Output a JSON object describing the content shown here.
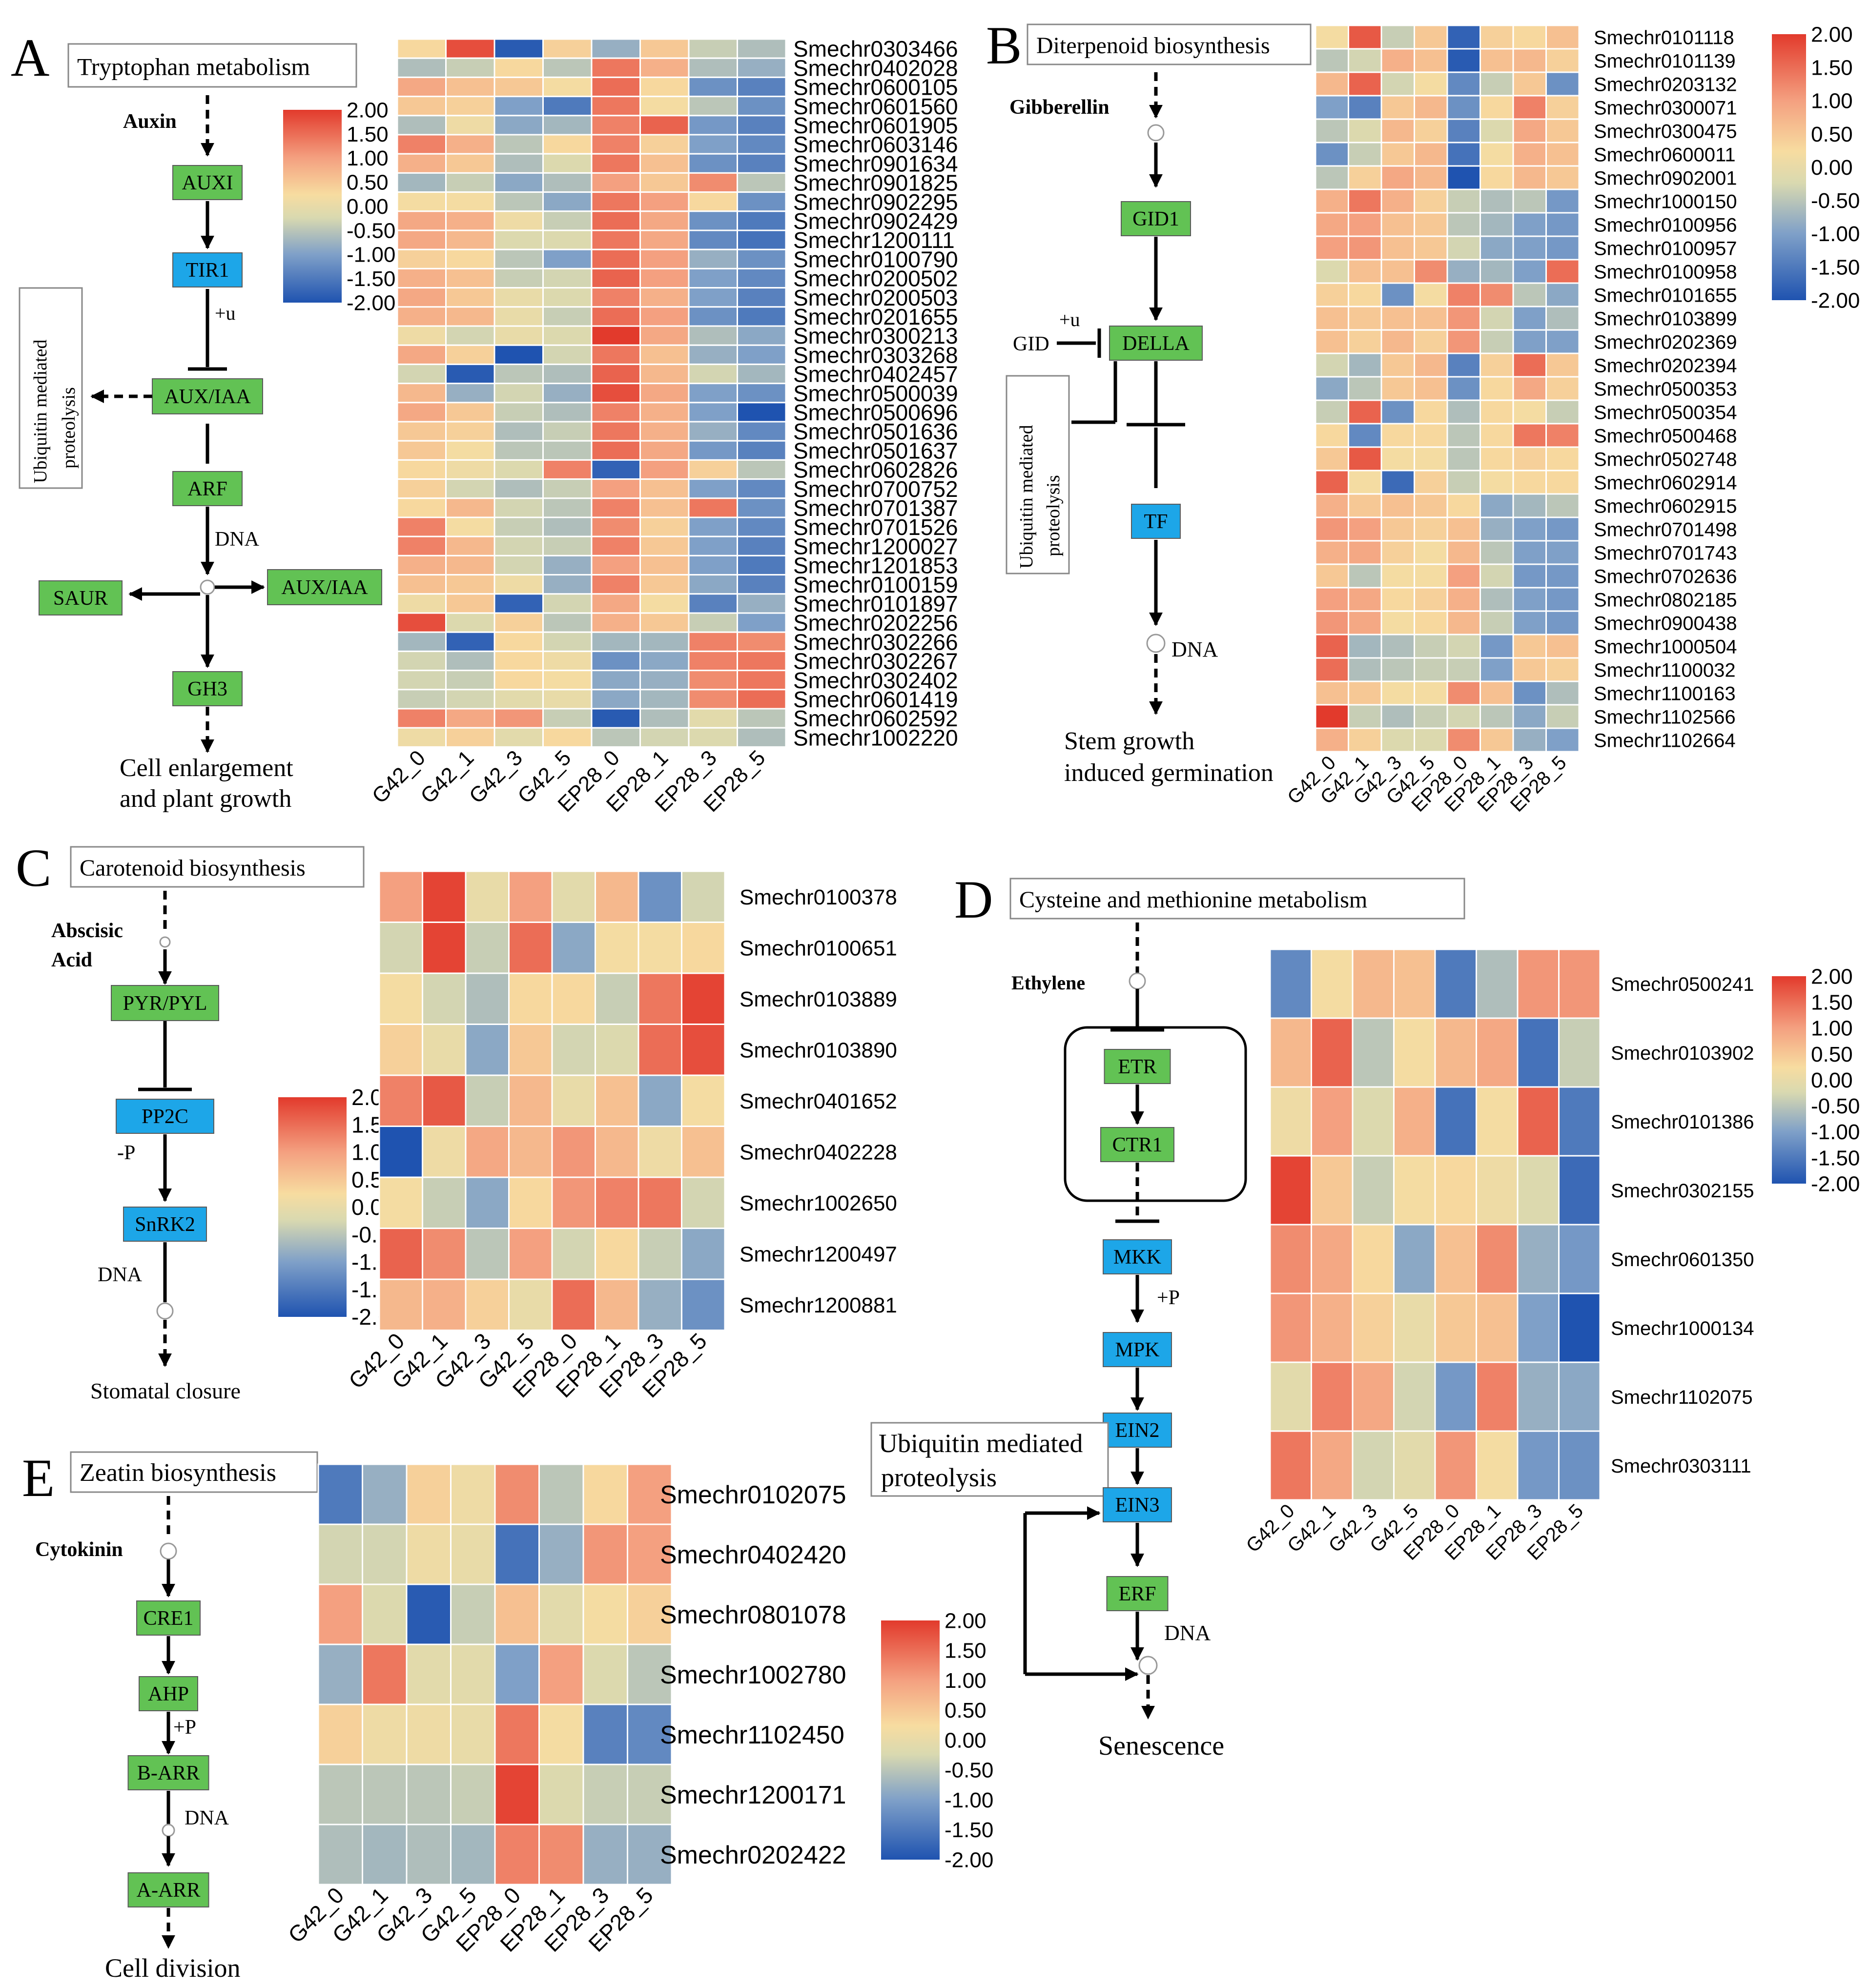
{
  "samples": [
    "G42_0",
    "G42_1",
    "G42_3",
    "G42_5",
    "EP28_0",
    "EP28_1",
    "EP28_3",
    "EP28_5"
  ],
  "scale": {
    "ticks": [
      "2.00",
      "1.50",
      "1.00",
      "0.50",
      "0.00",
      "-0.50",
      "-1.00",
      "-1.50",
      "-2.00"
    ],
    "min": -2,
    "max": 2,
    "colors": [
      "#1f53b0",
      "#7fa0c8",
      "#d9d9b0",
      "#f7dca0",
      "#f4a080",
      "#e23a2c"
    ]
  },
  "panels": {
    "A": {
      "letter": "A",
      "title": "Tryptophan metabolism",
      "hormone": "Auxin",
      "nodes": [
        "AUXI",
        "TIR1",
        "AUX/IAA",
        "ARF",
        "SAUR",
        "AUX/IAA",
        "GH3"
      ],
      "notes": {
        "plus_u": "+u",
        "dna": "DNA",
        "ubq": [
          "Ubiquitin mediated",
          "proteolysis"
        ],
        "outcome": [
          "Cell enlargement",
          "and plant  growth"
        ]
      },
      "genes": [
        "Smechr0303466",
        "Smechr0402028",
        "Smechr0600105",
        "Smechr0601560",
        "Smechr0601905",
        "Smechr0603146",
        "Smechr0901634",
        "Smechr0901825",
        "Smechr0902295",
        "Smechr0902429",
        "Smechr1200111",
        "Smechr0100790",
        "Smechr0200502",
        "Smechr0200503",
        "Smechr0201655",
        "Smechr0300213",
        "Smechr0303268",
        "Smechr0402457",
        "Smechr0500039",
        "Smechr0500696",
        "Smechr0501636",
        "Smechr0501637",
        "Smechr0602826",
        "Smechr0700752",
        "Smechr0701387",
        "Smechr0701526",
        "Smechr1200027",
        "Smechr1201853",
        "Smechr0100159",
        "Smechr0101897",
        "Smechr0202256",
        "Smechr0302266",
        "Smechr0302267",
        "Smechr0302402",
        "Smechr0601419",
        "Smechr0602592",
        "Smechr1002220"
      ],
      "values": [
        [
          0.3,
          1.8,
          -1.9,
          0.4,
          -0.8,
          0.5,
          -0.4,
          -0.6
        ],
        [
          -0.6,
          -0.4,
          0.3,
          -0.5,
          1.4,
          0.8,
          -0.6,
          -0.8
        ],
        [
          0.9,
          0.6,
          0.5,
          0.2,
          1.5,
          0.3,
          -1.2,
          -1.4
        ],
        [
          0.5,
          0.4,
          -1.0,
          -1.5,
          1.4,
          0.2,
          -0.5,
          -1.2
        ],
        [
          -0.6,
          0.1,
          -0.9,
          -0.7,
          1.3,
          1.6,
          -1.1,
          -1.4
        ],
        [
          1.3,
          0.8,
          -0.5,
          0.3,
          1.3,
          0.4,
          -1.0,
          -1.3
        ],
        [
          0.8,
          0.5,
          -0.6,
          -0.2,
          1.4,
          0.6,
          -1.2,
          -1.4
        ],
        [
          -0.7,
          -0.4,
          -0.9,
          -0.6,
          1.0,
          0.5,
          1.2,
          -0.5
        ],
        [
          0.2,
          0.2,
          -0.5,
          -0.9,
          1.4,
          1.0,
          0.3,
          -1.2
        ],
        [
          0.9,
          0.8,
          0.1,
          -0.4,
          1.5,
          0.9,
          -1.2,
          -1.5
        ],
        [
          0.9,
          0.7,
          -0.2,
          -0.2,
          1.4,
          0.9,
          -1.3,
          -1.6
        ],
        [
          0.4,
          0.3,
          -0.5,
          -1.0,
          1.5,
          1.0,
          -0.8,
          -1.2
        ],
        [
          0.8,
          0.6,
          -0.4,
          -0.3,
          1.6,
          1.0,
          -1.0,
          -1.3
        ],
        [
          0.9,
          0.5,
          0.0,
          -0.2,
          1.3,
          0.8,
          -1.0,
          -1.4
        ],
        [
          0.8,
          0.7,
          0.0,
          -0.4,
          1.5,
          1.0,
          -1.2,
          -1.5
        ],
        [
          0.1,
          -0.3,
          0.0,
          -0.2,
          2.0,
          0.9,
          -0.6,
          -0.9
        ],
        [
          0.9,
          0.4,
          -2.0,
          -0.3,
          1.4,
          0.6,
          -0.8,
          -1.0
        ],
        [
          -0.3,
          -1.9,
          -0.5,
          -0.6,
          1.6,
          0.7,
          -0.3,
          -0.7
        ],
        [
          0.7,
          -0.8,
          -0.3,
          -0.8,
          1.8,
          0.9,
          -1.0,
          -1.2
        ],
        [
          0.9,
          0.5,
          -0.4,
          -0.6,
          1.3,
          0.8,
          -1.0,
          -2.0
        ],
        [
          0.5,
          0.4,
          -0.6,
          -0.4,
          1.4,
          0.8,
          -0.8,
          -1.3
        ],
        [
          0.5,
          0.2,
          -0.5,
          -0.5,
          1.5,
          0.9,
          -1.1,
          -1.4
        ],
        [
          0.3,
          0.1,
          -0.2,
          1.3,
          -1.8,
          1.0,
          0.4,
          -0.5
        ],
        [
          0.4,
          -0.3,
          -0.6,
          -0.4,
          1.0,
          0.6,
          -1.0,
          -1.3
        ],
        [
          0.3,
          0.7,
          -0.3,
          -0.5,
          1.3,
          0.6,
          1.4,
          -1.2
        ],
        [
          1.3,
          0.2,
          -0.4,
          -0.6,
          1.2,
          0.4,
          -1.0,
          -1.3
        ],
        [
          1.3,
          0.7,
          -0.3,
          -0.4,
          1.3,
          0.5,
          -1.0,
          -1.4
        ],
        [
          0.8,
          0.7,
          -0.3,
          -0.8,
          1.0,
          0.6,
          -1.0,
          -1.5
        ],
        [
          0.6,
          0.5,
          0.1,
          -0.8,
          1.3,
          0.5,
          -0.9,
          -1.4
        ],
        [
          0.1,
          0.5,
          -1.8,
          -0.3,
          0.9,
          0.2,
          -1.4,
          -0.8
        ],
        [
          1.8,
          -0.2,
          0.4,
          -0.5,
          0.8,
          0.5,
          -0.4,
          -1.0
        ],
        [
          -0.7,
          -1.8,
          0.3,
          -0.3,
          -0.7,
          -0.7,
          1.3,
          1.2
        ],
        [
          -0.3,
          -0.6,
          0.3,
          0.1,
          -1.2,
          -0.9,
          1.3,
          1.4
        ],
        [
          -0.3,
          -0.4,
          0.3,
          0.2,
          -0.9,
          -0.8,
          1.2,
          1.4
        ],
        [
          -0.4,
          -0.3,
          -0.1,
          0.0,
          -0.9,
          -0.7,
          1.2,
          1.5
        ],
        [
          1.3,
          0.9,
          1.1,
          -0.4,
          -1.9,
          -0.6,
          -0.1,
          -0.5
        ],
        [
          0.1,
          0.4,
          -0.1,
          0.3,
          -0.5,
          -0.3,
          -0.2,
          -0.6
        ]
      ]
    },
    "B": {
      "letter": "B",
      "title": "Diterpenoid biosynthesis",
      "hormone": "Gibberellin",
      "nodes": [
        "GID1",
        "DELLA",
        "TF"
      ],
      "notes": {
        "gid": "GID",
        "plus_u": "+u",
        "dna": "DNA",
        "ubq": [
          "Ubiquitin mediated",
          "proteolysis"
        ],
        "outcome": [
          "Stem growth",
          "induced germination"
        ]
      },
      "genes": [
        "Smechr0101118",
        "Smechr0101139",
        "Smechr0203132",
        "Smechr0300071",
        "Smechr0300475",
        "Smechr0600011",
        "Smechr0902001",
        "Smechr1000150",
        "Smechr0100956",
        "Smechr0100957",
        "Smechr0100958",
        "Smechr0101655",
        "Smechr0103899",
        "Smechr0202369",
        "Smechr0202394",
        "Smechr0500353",
        "Smechr0500354",
        "Smechr0500468",
        "Smechr0502748",
        "Smechr0602914",
        "Smechr0602915",
        "Smechr0701498",
        "Smechr0701743",
        "Smechr0702636",
        "Smechr0802185",
        "Smechr0900438",
        "Smechr1000504",
        "Smechr1100032",
        "Smechr1100163",
        "Smechr1102566",
        "Smechr1102664"
      ],
      "values": [
        [
          0.2,
          1.7,
          -0.4,
          0.5,
          -1.8,
          0.4,
          0.3,
          0.6
        ],
        [
          -0.5,
          -0.3,
          0.8,
          0.6,
          -1.9,
          0.6,
          0.7,
          0.4
        ],
        [
          0.7,
          1.6,
          -0.3,
          0.2,
          -1.3,
          -0.4,
          0.5,
          -1.2
        ],
        [
          -1.0,
          -1.4,
          0.5,
          0.7,
          -1.2,
          0.3,
          1.3,
          0.4
        ],
        [
          -0.5,
          -0.2,
          0.7,
          0.4,
          -1.4,
          -0.2,
          0.9,
          0.5
        ],
        [
          -1.2,
          -0.4,
          0.5,
          0.7,
          -1.6,
          0.2,
          0.8,
          0.6
        ],
        [
          -0.5,
          0.4,
          0.9,
          0.7,
          -2.0,
          0.3,
          0.7,
          0.5
        ],
        [
          0.8,
          1.4,
          0.8,
          0.4,
          -0.4,
          -0.6,
          -0.5,
          -1.1
        ],
        [
          0.9,
          1.0,
          0.6,
          0.5,
          -0.5,
          -0.7,
          -1.0,
          -1.1
        ],
        [
          1.0,
          1.1,
          0.6,
          0.5,
          -0.3,
          -0.9,
          -1.0,
          -1.1
        ],
        [
          -0.2,
          0.6,
          0.6,
          1.2,
          -0.8,
          -0.7,
          -1.0,
          1.5
        ],
        [
          0.4,
          0.3,
          -1.2,
          0.2,
          1.3,
          1.2,
          -0.5,
          -0.9
        ],
        [
          0.6,
          0.5,
          0.6,
          0.6,
          1.1,
          -0.3,
          -1.0,
          -0.6
        ],
        [
          0.6,
          0.4,
          0.7,
          0.4,
          1.1,
          -0.4,
          -1.0,
          -1.0
        ],
        [
          -0.3,
          -0.7,
          0.5,
          0.7,
          -1.4,
          0.4,
          1.5,
          0.5
        ],
        [
          -0.9,
          -0.5,
          0.5,
          0.6,
          -1.2,
          0.3,
          0.9,
          0.4
        ],
        [
          -0.4,
          1.6,
          -1.2,
          0.3,
          -0.6,
          0.3,
          0.2,
          -0.4
        ],
        [
          0.3,
          -1.3,
          0.3,
          0.3,
          -0.5,
          0.3,
          1.4,
          1.3
        ],
        [
          0.5,
          1.7,
          0.2,
          0.2,
          -0.5,
          0.3,
          0.4,
          0.3
        ],
        [
          1.6,
          0.2,
          -1.7,
          0.4,
          -0.4,
          0.2,
          0.3,
          0.3
        ],
        [
          0.8,
          0.5,
          0.6,
          0.5,
          0.3,
          -0.9,
          -0.7,
          -0.5
        ],
        [
          1.1,
          1.0,
          0.5,
          0.4,
          0.6,
          -0.8,
          -1.0,
          -1.1
        ],
        [
          0.8,
          0.9,
          0.4,
          0.2,
          0.7,
          -0.5,
          -1.0,
          -1.0
        ],
        [
          0.5,
          -0.5,
          0.2,
          0.2,
          1.0,
          -0.3,
          -1.1,
          -1.1
        ],
        [
          1.0,
          0.9,
          0.3,
          0.4,
          0.8,
          -0.6,
          -1.0,
          -1.1
        ],
        [
          1.1,
          0.9,
          0.2,
          0.3,
          0.7,
          -0.4,
          -1.0,
          -1.1
        ],
        [
          1.6,
          -0.7,
          -0.6,
          -0.4,
          -0.3,
          -1.1,
          0.5,
          0.6
        ],
        [
          1.5,
          -0.6,
          -0.5,
          -0.4,
          -0.4,
          -1.0,
          0.5,
          0.4
        ],
        [
          0.6,
          0.5,
          0.2,
          0.2,
          1.2,
          0.6,
          -1.2,
          -0.6
        ],
        [
          2.0,
          -0.4,
          -0.6,
          -0.4,
          -0.3,
          -0.5,
          -0.9,
          -0.4
        ],
        [
          0.8,
          0.4,
          -0.2,
          -0.2,
          1.2,
          0.5,
          -0.8,
          -1.0
        ]
      ]
    },
    "C": {
      "letter": "C",
      "title": "Carotenoid biosynthesis",
      "hormone": [
        "Abscisic",
        "Acid"
      ],
      "nodes": [
        "PYR/PYL",
        "PP2C",
        "SnRK2"
      ],
      "notes": {
        "minus_p": "-P",
        "dna": "DNA",
        "outcome": "Stomatal closure"
      },
      "genes": [
        "Smechr0100378",
        "Smechr0100651",
        "Smechr0103889",
        "Smechr0103890",
        "Smechr0401652",
        "Smechr0402228",
        "Smechr1002650",
        "Smechr1200497",
        "Smechr1200881"
      ],
      "values": [
        [
          1.0,
          1.9,
          0.0,
          1.0,
          -0.1,
          0.7,
          -1.2,
          -0.3
        ],
        [
          -0.3,
          1.9,
          -0.4,
          1.5,
          -0.9,
          0.2,
          0.2,
          0.3
        ],
        [
          0.2,
          -0.3,
          -0.6,
          0.3,
          0.3,
          -0.4,
          1.4,
          1.9
        ],
        [
          0.4,
          0.0,
          -0.9,
          0.5,
          -0.3,
          -0.2,
          1.5,
          1.8
        ],
        [
          1.3,
          1.7,
          -0.4,
          0.7,
          0.0,
          0.6,
          -0.9,
          0.2
        ],
        [
          -2.0,
          0.1,
          0.9,
          0.7,
          1.1,
          0.7,
          0.1,
          0.6
        ],
        [
          0.2,
          -0.4,
          -0.9,
          0.3,
          1.1,
          1.3,
          1.4,
          -0.3
        ],
        [
          1.6,
          1.2,
          -0.5,
          1.0,
          -0.3,
          0.3,
          -0.4,
          -0.9
        ],
        [
          0.7,
          0.8,
          0.4,
          0.0,
          1.5,
          0.7,
          -0.8,
          -1.2
        ]
      ]
    },
    "D": {
      "letter": "D",
      "title": "Cysteine and methionine metabolism",
      "hormone": "Ethylene",
      "nodes": [
        "ETR",
        "CTR1",
        "MKK",
        "MPK",
        "EIN2",
        "EIN3",
        "ERF"
      ],
      "notes": {
        "plus_p": "+P",
        "dna": "DNA",
        "ubq": [
          "Ubiquitin mediated",
          "proteolysis"
        ],
        "outcome": "Senescence"
      },
      "genes": [
        "Smechr0500241",
        "Smechr0103902",
        "Smechr0101386",
        "Smechr0302155",
        "Smechr0601350",
        "Smechr1000134",
        "Smechr1102075",
        "Smechr0303111"
      ],
      "values": [
        [
          -1.3,
          0.2,
          0.7,
          0.6,
          -1.5,
          -0.6,
          1.1,
          1.1
        ],
        [
          0.7,
          1.6,
          -0.5,
          0.2,
          0.7,
          0.9,
          -1.6,
          -0.4
        ],
        [
          0.1,
          1.0,
          -0.2,
          0.8,
          -1.6,
          0.2,
          1.6,
          -1.5
        ],
        [
          1.9,
          0.5,
          -0.4,
          0.2,
          0.3,
          0.1,
          -0.2,
          -1.7
        ],
        [
          1.2,
          0.9,
          0.3,
          -0.9,
          0.6,
          1.2,
          -0.8,
          -1.1
        ],
        [
          1.1,
          0.8,
          0.4,
          0.0,
          0.5,
          0.6,
          -1.0,
          -2.0
        ],
        [
          -0.1,
          1.3,
          0.9,
          -0.3,
          -1.1,
          1.3,
          -0.8,
          -0.9
        ],
        [
          1.4,
          0.9,
          -0.3,
          -0.1,
          1.1,
          0.2,
          -1.1,
          -1.2
        ]
      ]
    },
    "E": {
      "letter": "E",
      "title": "Zeatin biosynthesis",
      "hormone": "Cytokinin",
      "nodes": [
        "CRE1",
        "AHP",
        "B-ARR",
        "A-ARR"
      ],
      "notes": {
        "plus_p": "+P",
        "dna": "DNA",
        "outcome": "Cell division"
      },
      "genes": [
        "Smechr0102075",
        "Smechr0402420",
        "Smechr0801078",
        "Smechr1002780",
        "Smechr1102450",
        "Smechr1200171",
        "Smechr0202422"
      ],
      "values": [
        [
          -1.5,
          -0.8,
          0.4,
          0.1,
          1.2,
          -0.5,
          0.3,
          1.0
        ],
        [
          -0.3,
          -0.3,
          0.1,
          0.0,
          -1.6,
          -0.8,
          1.1,
          1.0
        ],
        [
          1.0,
          -0.2,
          -1.9,
          -0.4,
          0.6,
          -0.1,
          0.2,
          0.4
        ],
        [
          -0.8,
          1.4,
          -0.1,
          -0.1,
          -1.0,
          1.0,
          -0.2,
          -0.5
        ],
        [
          0.4,
          0.1,
          0.1,
          0.0,
          1.4,
          0.2,
          -1.4,
          -1.3
        ],
        [
          -0.5,
          -0.5,
          -0.5,
          -0.4,
          1.9,
          -0.2,
          -0.4,
          -0.4
        ],
        [
          -0.6,
          -0.7,
          -0.6,
          -0.7,
          1.3,
          1.2,
          -0.8,
          -0.8
        ]
      ]
    }
  }
}
